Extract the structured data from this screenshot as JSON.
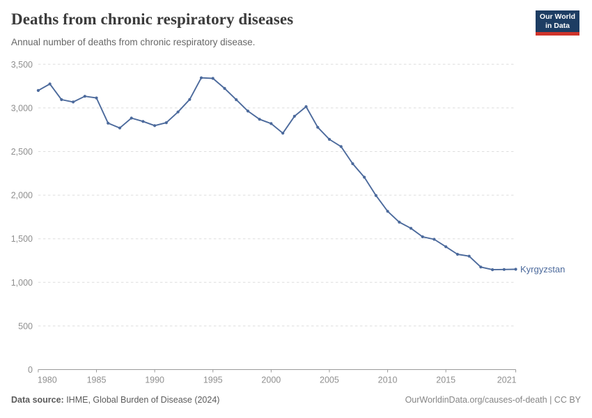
{
  "header": {
    "title": "Deaths from chronic respiratory diseases",
    "subtitle": "Annual number of deaths from chronic respiratory disease."
  },
  "logo": {
    "line1": "Our World",
    "line2": "in Data",
    "bg_color": "#1d3d63",
    "accent_color": "#d0342b"
  },
  "footer": {
    "source_label": "Data source:",
    "source_text": " IHME, Global Burden of Disease (2024)",
    "credit": "OurWorldinData.org/causes-of-death | CC BY"
  },
  "chart_data": {
    "type": "line",
    "title": "Deaths from chronic respiratory diseases",
    "xlabel": "",
    "ylabel": "",
    "xlim": [
      1980,
      2021
    ],
    "ylim": [
      0,
      3500
    ],
    "grid": "dashed-horizontal",
    "legend_position": "end-of-line-label",
    "x": [
      1980,
      1981,
      1982,
      1983,
      1984,
      1985,
      1986,
      1987,
      1988,
      1989,
      1990,
      1991,
      1992,
      1993,
      1994,
      1995,
      1996,
      1997,
      1998,
      1999,
      2000,
      2001,
      2002,
      2003,
      2004,
      2005,
      2006,
      2007,
      2008,
      2009,
      2010,
      2011,
      2012,
      2013,
      2014,
      2015,
      2016,
      2017,
      2018,
      2019,
      2020,
      2021
    ],
    "series": [
      {
        "name": "Kyrgyzstan",
        "color": "#4C6A9C",
        "values": [
          3200,
          3275,
          3095,
          3068,
          3133,
          3114,
          2825,
          2770,
          2883,
          2845,
          2797,
          2831,
          2954,
          3097,
          3345,
          3339,
          3224,
          3094,
          2964,
          2870,
          2820,
          2710,
          2904,
          3014,
          2778,
          2640,
          2557,
          2360,
          2205,
          1996,
          1815,
          1690,
          1620,
          1522,
          1494,
          1408,
          1322,
          1300,
          1176,
          1145,
          1148,
          1150
        ]
      }
    ],
    "xticks": [
      {
        "value": 1980,
        "label": "1980"
      },
      {
        "value": 1985,
        "label": "1985"
      },
      {
        "value": 1990,
        "label": "1990"
      },
      {
        "value": 1995,
        "label": "1995"
      },
      {
        "value": 2000,
        "label": "2000"
      },
      {
        "value": 2005,
        "label": "2005"
      },
      {
        "value": 2010,
        "label": "2010"
      },
      {
        "value": 2015,
        "label": "2015"
      },
      {
        "value": 2021,
        "label": "2021"
      }
    ],
    "yticks": [
      {
        "value": 0,
        "label": "0"
      },
      {
        "value": 500,
        "label": "500"
      },
      {
        "value": 1000,
        "label": "1,000"
      },
      {
        "value": 1500,
        "label": "1,500"
      },
      {
        "value": 2000,
        "label": "2,000"
      },
      {
        "value": 2500,
        "label": "2,500"
      },
      {
        "value": 3000,
        "label": "3,000"
      },
      {
        "value": 3500,
        "label": "3,500"
      }
    ],
    "colors": {
      "gridline": "#dedede",
      "axis": "#999999",
      "tick_label": "#8f8f8f"
    }
  }
}
